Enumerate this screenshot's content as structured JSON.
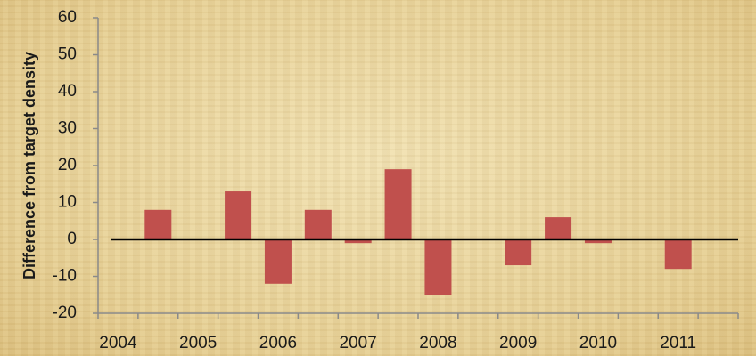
{
  "chart_data": {
    "type": "bar",
    "y_label": "Difference from target density",
    "categories": [
      "2004",
      null,
      "2005",
      null,
      "2006",
      null,
      "2007",
      null,
      "2008",
      null,
      "2009",
      null,
      "2010",
      null,
      "2011",
      null
    ],
    "values": [
      null,
      8,
      null,
      13,
      -12,
      8,
      -1,
      19,
      -15,
      null,
      -7,
      6,
      -1,
      null,
      -8,
      null
    ],
    "color": "#c0504d",
    "ylim": [
      -20,
      60
    ],
    "yticks": [
      -20,
      -10,
      0,
      10,
      20,
      30,
      40,
      50,
      60
    ],
    "grid": false
  }
}
